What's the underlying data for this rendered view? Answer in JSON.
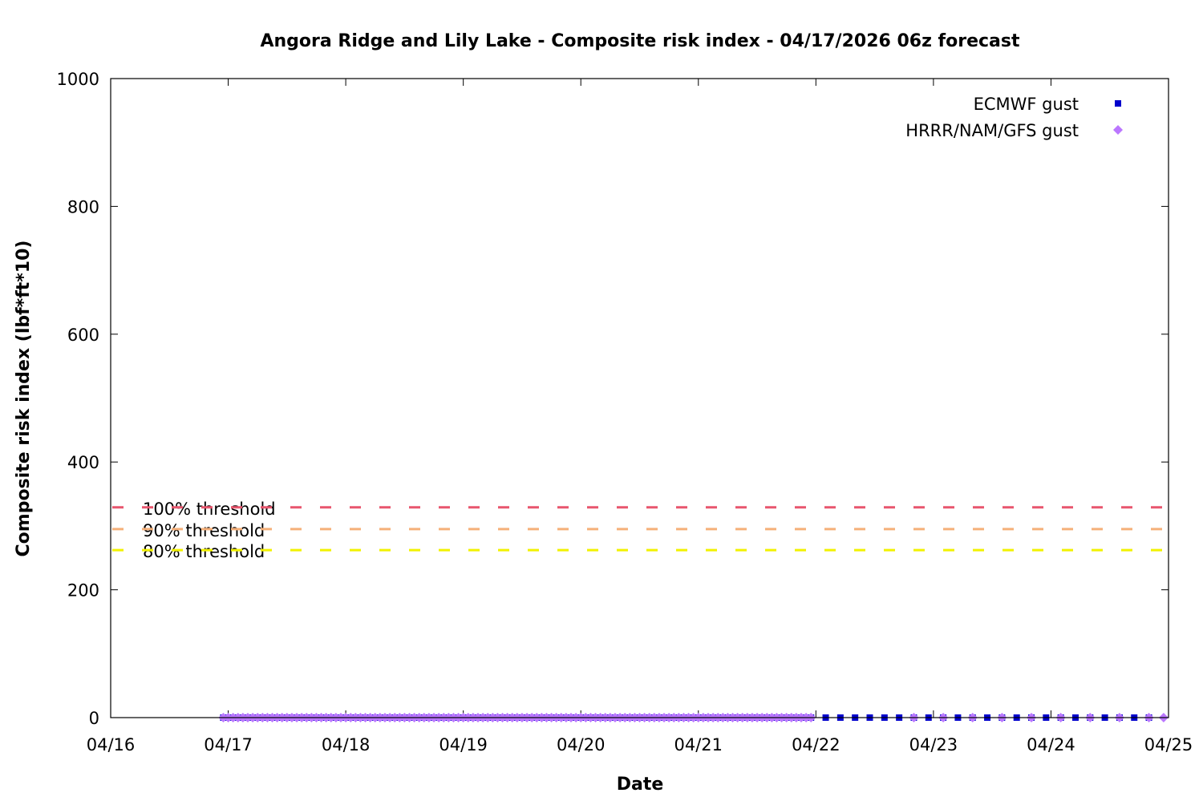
{
  "chart_data": {
    "type": "scatter",
    "title": "Angora Ridge and Lily Lake - Composite risk index - 04/17/2026 06z forecast",
    "xlabel": "Date",
    "ylabel": "Composite risk index (lbf*ft*10)",
    "xlim": [
      "04/16 00:00",
      "04/25 00:00"
    ],
    "ylim": [
      0,
      1000
    ],
    "x_ticks": [
      "04/16",
      "04/17",
      "04/18",
      "04/19",
      "04/20",
      "04/21",
      "04/22",
      "04/23",
      "04/24",
      "04/25"
    ],
    "y_ticks": [
      0,
      200,
      400,
      600,
      800,
      1000
    ],
    "grid": false,
    "legend_position": "top-right",
    "series": [
      {
        "name": "ECMWF gust",
        "marker": "square",
        "color": "#0000cc",
        "segments": [
          {
            "from": "04/16 23:00",
            "to": "04/21 23:00",
            "step_hours": 1,
            "value": 0
          },
          {
            "from": "04/22 02:00",
            "to": "04/24 20:00",
            "step_hours": 3,
            "value": 0
          }
        ]
      },
      {
        "name": "HRRR/NAM/GFS gust",
        "marker": "diamond",
        "color": "#bb77ff",
        "segments": [
          {
            "from": "04/16 23:00",
            "to": "04/21 23:00",
            "step_hours": 1,
            "value": 0
          },
          {
            "from": "04/22 20:00",
            "to": "04/24 20:00",
            "step_hours": 6,
            "value": 0
          },
          {
            "from": "04/24 23:00",
            "to": "04/24 23:00",
            "step_hours": 1,
            "value": 0
          }
        ]
      }
    ],
    "thresholds": [
      {
        "label": "100% threshold",
        "value": 329,
        "color": "#e8566e"
      },
      {
        "label": "90% threshold",
        "value": 295,
        "color": "#f5b07a"
      },
      {
        "label": "80% threshold",
        "value": 262,
        "color": "#f2f200"
      }
    ]
  }
}
